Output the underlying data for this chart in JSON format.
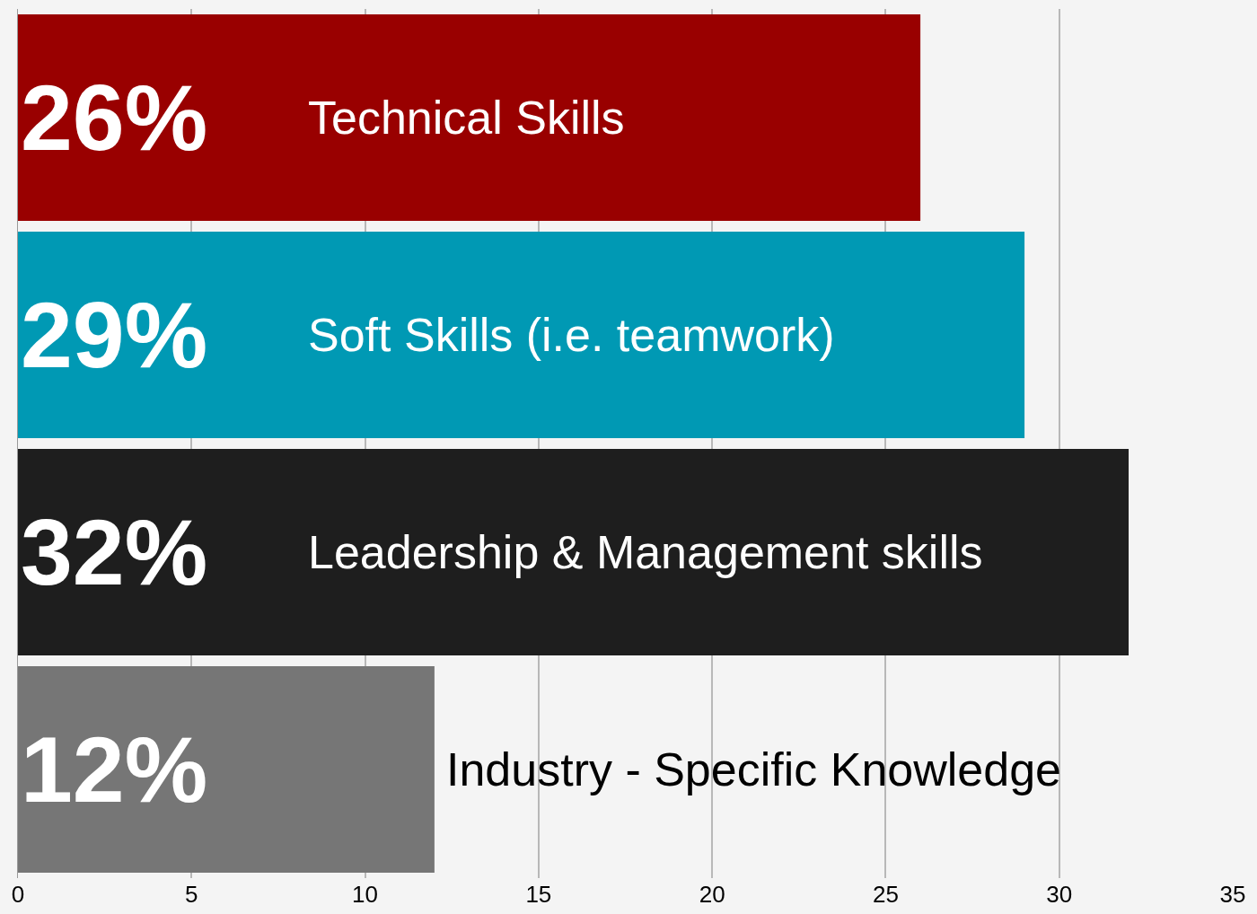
{
  "chart_data": {
    "type": "bar",
    "orientation": "horizontal",
    "categories": [
      "Technical Skills",
      "Soft Skills (i.e. teamwork)",
      "Leadership & Management skills",
      "Industry - Specific Knowledge"
    ],
    "values": [
      26,
      29,
      32,
      12
    ],
    "value_labels": [
      "26%",
      "29%",
      "32%",
      "12%"
    ],
    "colors": [
      "#990000",
      "#0099b4",
      "#1e1e1e",
      "#767676"
    ],
    "xlim": [
      0,
      35
    ],
    "xticks": [
      0,
      5,
      10,
      15,
      20,
      25,
      30,
      35
    ],
    "grid": "x",
    "tick_labels": "x",
    "legend": false
  }
}
